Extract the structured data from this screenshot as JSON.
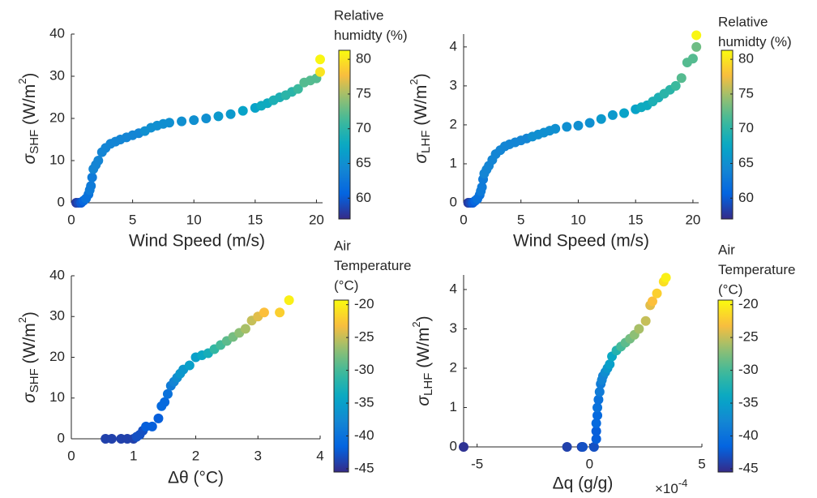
{
  "chart_data": [
    {
      "type": "scatter",
      "colormap": "parula",
      "x": [
        0.4,
        0.6,
        0.8,
        1.0,
        1.2,
        1.4,
        1.5,
        1.6,
        1.7,
        1.8,
        2.0,
        2.2,
        2.5,
        2.8,
        3.2,
        3.6,
        4.0,
        4.5,
        5.0,
        5.5,
        6.0,
        6.5,
        7.0,
        7.5,
        8.0,
        9,
        10,
        11,
        12,
        13,
        14,
        15,
        15.5,
        16,
        16.5,
        17,
        17.5,
        18,
        18.5,
        19,
        19.5,
        20,
        20.3,
        20.3
      ],
      "y": [
        0,
        0,
        0,
        0.5,
        1,
        2,
        3,
        4,
        6,
        8,
        9,
        10,
        12,
        13,
        14,
        14.5,
        15,
        15.5,
        16,
        16.5,
        17,
        17.8,
        18.3,
        18.7,
        19,
        19.3,
        19.6,
        20,
        20.5,
        21,
        21.8,
        22.5,
        23,
        23.6,
        24.3,
        25,
        25.5,
        26.3,
        27,
        28.5,
        29,
        29.5,
        31,
        34
      ],
      "color_values": [
        58,
        59,
        60,
        61,
        62,
        62,
        63,
        63,
        63,
        64,
        64,
        64,
        64,
        64,
        64,
        64,
        64,
        64,
        64,
        64,
        65,
        65,
        65,
        65,
        65,
        65,
        65,
        65,
        66,
        66,
        67,
        67,
        68,
        68,
        69,
        69,
        70,
        70,
        71,
        72,
        72,
        72,
        80,
        81
      ],
      "xlim": [
        0,
        20.5
      ],
      "ylim": [
        0,
        40
      ],
      "xticks": [
        0,
        5,
        10,
        15,
        20
      ],
      "yticks": [
        0,
        10,
        20,
        30,
        40
      ],
      "xlabel": "Wind Speed (m/s)",
      "ylabel": [
        "σ",
        "SHF",
        " (W/m",
        "2",
        ")"
      ],
      "colorbar": {
        "label": [
          "Relative",
          "humidty (%)"
        ],
        "clim": [
          57,
          81.3
        ],
        "ticks": [
          60,
          65,
          70,
          75,
          80
        ]
      }
    },
    {
      "type": "scatter",
      "colormap": "parula",
      "x": [
        0.4,
        0.6,
        0.8,
        1.0,
        1.2,
        1.4,
        1.5,
        1.6,
        1.7,
        1.8,
        2.0,
        2.2,
        2.5,
        2.8,
        3.2,
        3.6,
        4.0,
        4.5,
        5.0,
        5.5,
        6.0,
        6.5,
        7.0,
        7.5,
        8.0,
        9,
        10,
        11,
        12,
        13,
        14,
        15,
        15.5,
        16,
        16.5,
        17,
        17.5,
        18,
        18.5,
        19,
        19.5,
        20,
        20.3,
        20.3
      ],
      "y": [
        0,
        0,
        0,
        0.05,
        0.1,
        0.2,
        0.3,
        0.4,
        0.6,
        0.75,
        0.85,
        0.95,
        1.1,
        1.25,
        1.35,
        1.45,
        1.5,
        1.55,
        1.6,
        1.65,
        1.7,
        1.75,
        1.8,
        1.85,
        1.9,
        1.95,
        1.98,
        2.05,
        2.15,
        2.25,
        2.3,
        2.4,
        2.45,
        2.5,
        2.6,
        2.7,
        2.8,
        2.9,
        3.0,
        3.2,
        3.6,
        3.7,
        4.0,
        4.3
      ],
      "color_values": [
        58,
        59,
        60,
        61,
        62,
        62,
        63,
        63,
        63,
        64,
        64,
        64,
        64,
        64,
        64,
        64,
        64,
        64,
        64,
        64,
        65,
        65,
        65,
        65,
        65,
        65,
        65,
        65,
        66,
        66,
        67,
        67,
        68,
        68,
        69,
        69,
        70,
        70,
        71,
        72,
        72,
        72,
        73,
        81
      ],
      "xlim": [
        0,
        20.5
      ],
      "ylim": [
        0,
        4.33
      ],
      "xticks": [
        0,
        5,
        10,
        15,
        20
      ],
      "yticks": [
        0,
        1,
        2,
        3,
        4
      ],
      "xlabel": "Wind Speed (m/s)",
      "ylabel": [
        "σ",
        "LHF",
        " (W/m",
        "2",
        ")"
      ],
      "colorbar": {
        "label": [
          "Relative",
          "humidty (%)"
        ],
        "clim": [
          57,
          81.3
        ],
        "ticks": [
          60,
          65,
          70,
          75,
          80
        ]
      }
    },
    {
      "type": "scatter",
      "colormap": "parula",
      "x": [
        0.55,
        0.65,
        0.8,
        0.9,
        1.0,
        1.05,
        1.1,
        1.15,
        1.2,
        1.3,
        1.4,
        1.45,
        1.5,
        1.55,
        1.6,
        1.65,
        1.7,
        1.75,
        1.8,
        1.9,
        2.0,
        2.1,
        2.2,
        2.3,
        2.4,
        2.5,
        2.6,
        2.7,
        2.8,
        2.9,
        3.0,
        3.1,
        3.35,
        3.5
      ],
      "y": [
        0,
        0,
        0,
        0,
        0,
        0.5,
        1,
        2,
        3,
        3,
        5,
        8,
        9,
        11,
        13,
        14,
        15,
        16,
        17,
        18,
        20,
        20.5,
        21,
        22,
        23,
        24,
        25,
        26,
        27,
        29,
        30,
        31,
        31,
        34
      ],
      "color_values": [
        -44,
        -44,
        -44,
        -44,
        -44,
        -43,
        -43,
        -43,
        -42,
        -42,
        -42,
        -41,
        -41,
        -40,
        -39,
        -38,
        -37,
        -36,
        -36,
        -35,
        -35,
        -34,
        -33,
        -31,
        -30,
        -29,
        -28,
        -27,
        -26,
        -25,
        -24,
        -23,
        -22,
        -20
      ],
      "xlim": [
        0,
        4
      ],
      "ylim": [
        0,
        40
      ],
      "xticks": [
        0,
        1,
        2,
        3,
        4
      ],
      "yticks": [
        0,
        10,
        20,
        30,
        40
      ],
      "xlabel": "Δθ (°C)",
      "ylabel": [
        "σ",
        "SHF",
        " (W/m",
        "2",
        ")"
      ],
      "colorbar": {
        "label": [
          "Air",
          "Temperature",
          "(°C)"
        ],
        "clim": [
          -45.5,
          -19.3
        ],
        "ticks": [
          -45,
          -40,
          -35,
          -30,
          -25,
          -20
        ]
      }
    },
    {
      "type": "scatter",
      "colormap": "parula",
      "x": [
        -5.6,
        -1.0,
        -0.35,
        -0.3,
        0.2,
        0.3,
        0.3,
        0.3,
        0.35,
        0.35,
        0.4,
        0.45,
        0.5,
        0.55,
        0.6,
        0.7,
        0.8,
        0.9,
        1.0,
        1.2,
        1.4,
        1.6,
        1.8,
        2.0,
        2.2,
        2.5,
        2.7,
        2.8,
        3.0,
        3.3,
        3.4
      ],
      "y": [
        0,
        0,
        0,
        0,
        0,
        0.2,
        0.4,
        0.6,
        0.8,
        1.0,
        1.2,
        1.4,
        1.6,
        1.7,
        1.8,
        1.9,
        2.0,
        2.1,
        2.3,
        2.45,
        2.55,
        2.65,
        2.75,
        2.85,
        3.0,
        3.2,
        3.6,
        3.7,
        3.9,
        4.2,
        4.3
      ],
      "color_values": [
        -45,
        -44,
        -44,
        -43,
        -43,
        -42,
        -42,
        -41,
        -41,
        -40,
        -40,
        -39,
        -39,
        -38,
        -38,
        -37,
        -36,
        -35,
        -34,
        -32,
        -30,
        -29,
        -28,
        -27,
        -26,
        -25,
        -24,
        -23,
        -22,
        -21,
        -20
      ],
      "xlim": [
        -5.6,
        5
      ],
      "ylim": [
        0,
        4.37
      ],
      "xticks": [
        -5,
        0,
        5
      ],
      "yticks": [
        0,
        1,
        2,
        3,
        4
      ],
      "xlabel": "Δq (g/g)",
      "ylabel": [
        "σ",
        "LHF",
        " (W/m",
        "2",
        ")"
      ],
      "x_exponent": [
        "×10",
        "-4"
      ],
      "colorbar": {
        "label": [
          "Air",
          "Temperature",
          "(°C)"
        ],
        "clim": [
          -45.5,
          -19.3
        ],
        "ticks": [
          -45,
          -40,
          -35,
          -30,
          -25,
          -20
        ]
      }
    }
  ]
}
